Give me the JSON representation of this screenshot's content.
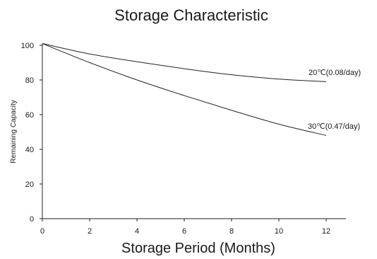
{
  "chart_data": {
    "type": "line",
    "title": "Storage Characteristic",
    "xlabel": "Storage Period (Months)",
    "ylabel": "Remaining Capacity",
    "xlim": [
      0,
      13
    ],
    "ylim": [
      0,
      102
    ],
    "xticks": [
      0,
      2,
      4,
      6,
      8,
      10,
      12
    ],
    "yticks": [
      0,
      20,
      40,
      60,
      80,
      100
    ],
    "grid": false,
    "series": [
      {
        "name": "20℃(0.08/day)",
        "x": [
          0,
          2,
          4,
          6,
          8,
          10,
          12
        ],
        "y": [
          101,
          95,
          90.5,
          86.5,
          83,
          80.5,
          79
        ]
      },
      {
        "name": "30℃(0.47/day)",
        "x": [
          0,
          2,
          4,
          6,
          8,
          10,
          12
        ],
        "y": [
          101,
          90,
          80,
          71,
          62.5,
          54.5,
          48
        ]
      }
    ]
  }
}
